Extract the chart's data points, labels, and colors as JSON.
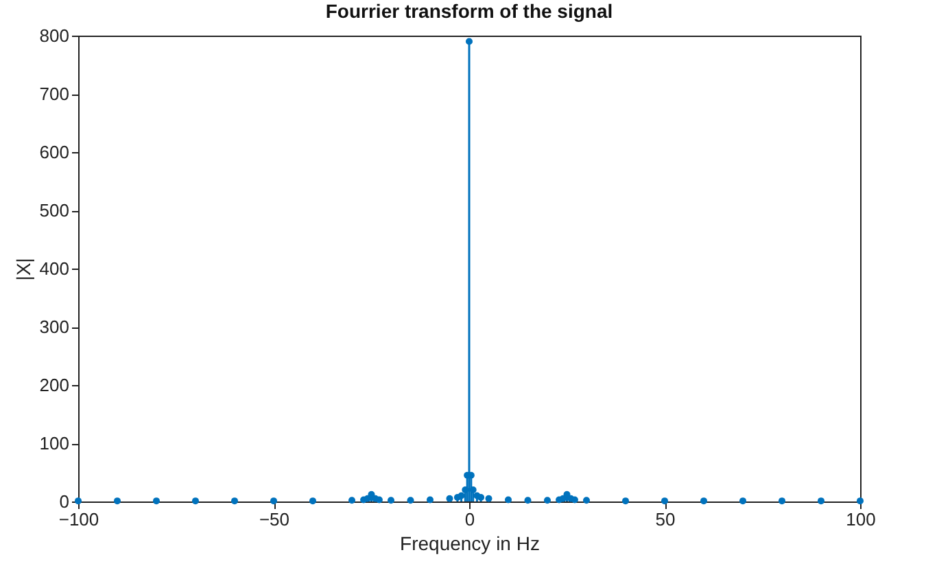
{
  "chart_data": {
    "type": "lollipop",
    "title": "Fourrier transform of the signal",
    "xlabel": "Frequency in Hz",
    "ylabel": "|X|",
    "x": [
      -100,
      -90,
      -80,
      -70,
      -60,
      -50,
      -40,
      -30,
      -27,
      -26,
      -25,
      -24,
      -23,
      -20,
      -15,
      -10,
      -5,
      -3,
      -2,
      -1,
      -0.5,
      0,
      0.5,
      1,
      2,
      3,
      5,
      10,
      15,
      20,
      23,
      24,
      25,
      26,
      27,
      30,
      40,
      50,
      60,
      70,
      80,
      90,
      100
    ],
    "values": [
      1,
      1,
      1,
      1,
      1,
      1,
      1,
      2,
      3,
      5,
      12,
      5,
      3,
      2,
      2,
      3,
      5,
      7,
      10,
      20,
      45,
      790,
      45,
      20,
      10,
      7,
      5,
      3,
      2,
      2,
      3,
      5,
      12,
      5,
      3,
      2,
      1,
      1,
      1,
      1,
      1,
      1,
      1
    ],
    "color": "#0072bd",
    "marker": "circle",
    "xlim": [
      -100,
      100
    ],
    "xticks": [
      -100,
      -50,
      0,
      50,
      100
    ],
    "ylim": [
      0,
      800
    ],
    "yticks": [
      0,
      100,
      200,
      300,
      400,
      500,
      600,
      700,
      800
    ],
    "grid": false
  }
}
